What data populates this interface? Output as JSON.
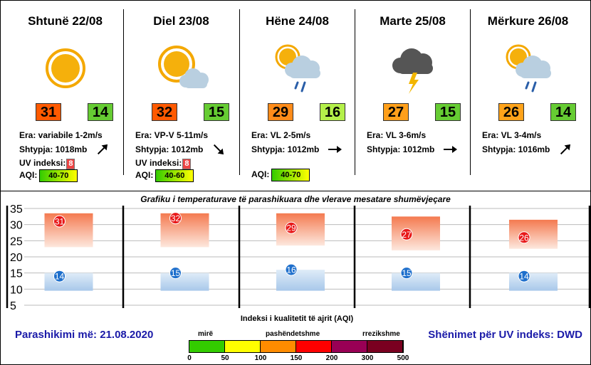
{
  "days": [
    {
      "title": "Shtunë 22/08",
      "icon": "sun-icon",
      "tmax": "31",
      "tmin": "14",
      "tmax_color": "#ff5a00",
      "tmin_color": "#66cc33",
      "wind": "Era: variabile 1-2m/s",
      "pressure": "Shtypja: 1018mb",
      "uv_label": "UV indeksi:",
      "uv": "8",
      "aqi_label": "AQI:",
      "aqi": "40-70",
      "aqi_gradient": [
        "#33cc00",
        "#ffff00"
      ]
    },
    {
      "title": "Diel 23/08",
      "icon": "partly-cloudy-icon",
      "tmax": "32",
      "tmin": "15",
      "tmax_color": "#ff5a00",
      "tmin_color": "#66cc33",
      "wind": "Era: VP-V 5-11m/s",
      "pressure": "Shtypja: 1012mb",
      "uv_label": "UV indeksi:",
      "uv": "8",
      "aqi_label": "AQI:",
      "aqi": "40-60",
      "aqi_gradient": [
        "#33cc00",
        "#ffff00"
      ]
    },
    {
      "title": "Hëne 24/08",
      "icon": "sun-cloud-rain-icon",
      "tmax": "29",
      "tmin": "16",
      "tmax_color": "#ff8c1a",
      "tmin_color": "#b4f04a",
      "wind": "Era: VL 2-5m/s",
      "pressure": "Shtypja: 1012mb",
      "uv_label": "",
      "uv": "",
      "aqi_label": "AQI:",
      "aqi": "40-70",
      "aqi_gradient": [
        "#33cc00",
        "#ffff00"
      ]
    },
    {
      "title": "Marte 25/08",
      "icon": "thunderstorm-icon",
      "tmax": "27",
      "tmin": "15",
      "tmax_color": "#ff9f1a",
      "tmin_color": "#66cc33",
      "wind": "Era: VL 3-6m/s",
      "pressure": "Shtypja: 1012mb",
      "uv_label": "",
      "uv": "",
      "aqi_label": "",
      "aqi": "",
      "aqi_gradient": []
    },
    {
      "title": "Mërkure 26/08",
      "icon": "sun-cloud-rain-icon",
      "tmax": "26",
      "tmin": "14",
      "tmax_color": "#ffa31a",
      "tmin_color": "#66cc33",
      "wind": "Era: VL 3-4m/s",
      "pressure": "Shtypja: 1016mb",
      "uv_label": "",
      "uv": "",
      "aqi_label": "",
      "aqi": "",
      "aqi_gradient": []
    }
  ],
  "chart_title": "Grafiku i temperaturave të parashikuara dhe vlerave mesatare shumëvjeçare",
  "chart_data": {
    "type": "bar",
    "categories": [
      "Shtunë 22/08",
      "Diel 23/08",
      "Hëne 24/08",
      "Marte 25/08",
      "Mërkure 26/08"
    ],
    "ylim": [
      5,
      35
    ],
    "yticks": [
      "35",
      "30",
      "25",
      "20",
      "15",
      "10",
      "5"
    ],
    "series": [
      {
        "values": [
          31,
          32,
          29,
          27,
          26
        ],
        "range_bars": [
          [
            23,
            33.5
          ],
          [
            23,
            33.5
          ],
          [
            23.5,
            33.5
          ],
          [
            22,
            32.5
          ],
          [
            22.5,
            31.5
          ]
        ]
      },
      {
        "values": [
          14,
          15,
          16,
          15,
          14
        ],
        "range_bars": [
          [
            9.5,
            15
          ],
          [
            9.5,
            15
          ],
          [
            9.5,
            16
          ],
          [
            9.5,
            15
          ],
          [
            9.5,
            15
          ]
        ]
      }
    ]
  },
  "footer": {
    "issued": "Parashikimi më: 21.08.2020",
    "uv_note": "Shënimet për UV indeks: DWD"
  },
  "aqi_legend": {
    "title": "Indeksi i kualitetit të ajrit (AQI)",
    "words": [
      "mirë",
      "pashëndetshme",
      "rrezikshme"
    ],
    "ticks": [
      "0",
      "50",
      "100",
      "150",
      "200",
      "300",
      "500"
    ],
    "colors": [
      "#33cc00",
      "#ffff00",
      "#ff8c00",
      "#ff0000",
      "#990055",
      "#7a0020"
    ]
  }
}
